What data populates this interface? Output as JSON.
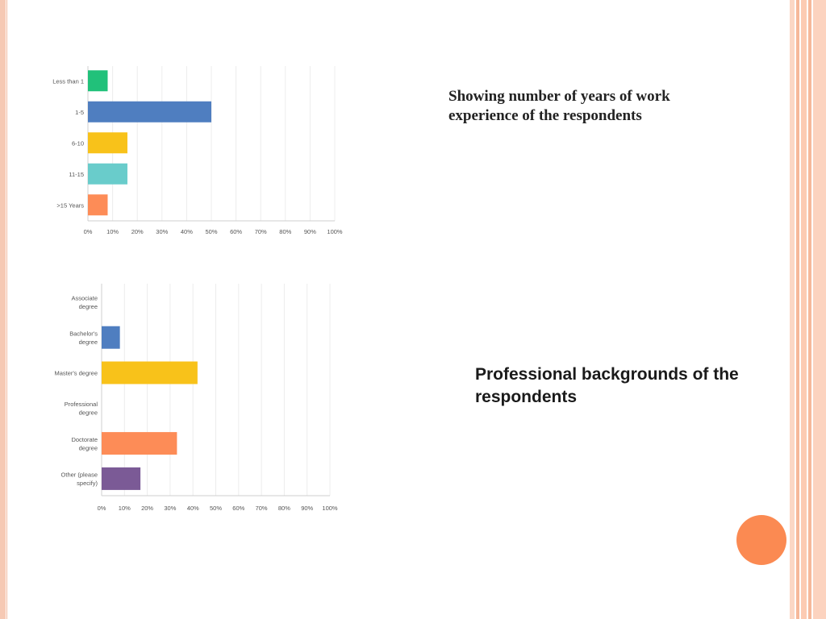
{
  "slide": {
    "caption_top": "Showing number of years of work experience of the respondents",
    "caption_bottom": "Professional backgrounds of the respondents"
  },
  "colors": {
    "green": "#21c17a",
    "blue": "#4f7ec0",
    "yellow": "#f8c21a",
    "teal": "#69cccb",
    "orange": "#fd8c57",
    "purple": "#7b5a96",
    "accent": "#fb8a52"
  },
  "chart_data": [
    {
      "type": "bar",
      "orientation": "horizontal",
      "categories": [
        [
          "Less than 1"
        ],
        [
          "1-5"
        ],
        [
          "6-10"
        ],
        [
          "11-15"
        ],
        [
          ">15 Years"
        ]
      ],
      "values": [
        8,
        50,
        16,
        16,
        8
      ],
      "colors": [
        "#21c17a",
        "#4f7ec0",
        "#f8c21a",
        "#69cccb",
        "#fd8c57"
      ],
      "xlim": [
        0,
        100
      ],
      "ticks": [
        "0%",
        "10%",
        "20%",
        "30%",
        "40%",
        "50%",
        "60%",
        "70%",
        "80%",
        "90%",
        "100%"
      ],
      "grid": true
    },
    {
      "type": "bar",
      "orientation": "horizontal",
      "categories": [
        [
          "Associate",
          "degree"
        ],
        [
          "Bachelor's",
          "degree"
        ],
        [
          "Master's degree"
        ],
        [
          "Professional",
          "degree"
        ],
        [
          "Doctorate",
          "degree"
        ],
        [
          "Other (please",
          "specify)"
        ]
      ],
      "values": [
        0,
        8,
        42,
        0,
        33,
        17
      ],
      "colors": [
        "#4f7ec0",
        "#4f7ec0",
        "#f8c21a",
        "#69cccb",
        "#fd8c57",
        "#7b5a96"
      ],
      "xlim": [
        0,
        100
      ],
      "ticks": [
        "0%",
        "10%",
        "20%",
        "30%",
        "40%",
        "50%",
        "60%",
        "70%",
        "80%",
        "90%",
        "100%"
      ],
      "grid": true
    }
  ]
}
